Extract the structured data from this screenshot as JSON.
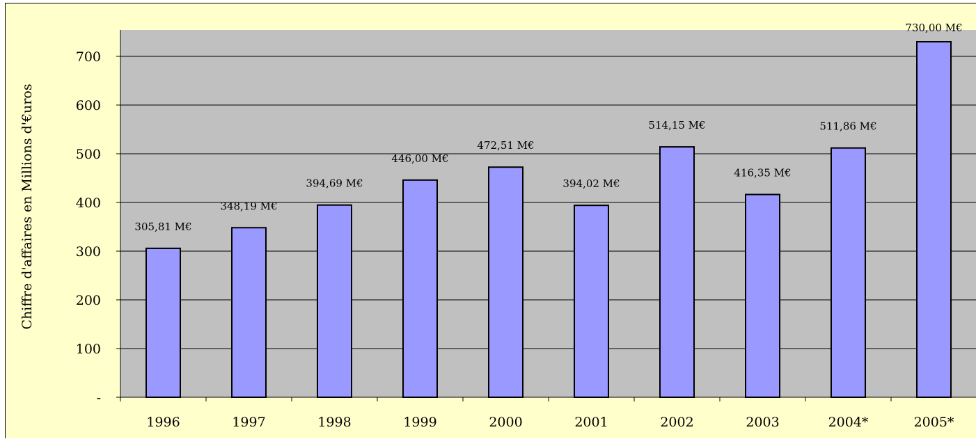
{
  "chart_data": {
    "type": "bar",
    "categories": [
      "1996",
      "1997",
      "1998",
      "1999",
      "2000",
      "2001",
      "2002",
      "2003",
      "2004*",
      "2005*"
    ],
    "values": [
      305.81,
      348.19,
      394.69,
      446.0,
      472.51,
      394.02,
      514.15,
      416.35,
      511.86,
      730.0
    ],
    "data_labels": [
      "305,81 M€",
      "348,19 M€",
      "394,69 M€",
      "446,00 M€",
      "472,51 M€",
      "394,02 M€",
      "514,15 M€",
      "416,35 M€",
      "511,86 M€",
      "730,00 M€"
    ],
    "title": "",
    "xlabel": "",
    "ylabel": "Chiffre d'affaires en Millions d'€uros",
    "ylim": [
      0,
      700
    ],
    "yticks": [
      0,
      100,
      200,
      300,
      400,
      500,
      600,
      700
    ],
    "ytick_labels": [
      "-",
      "100",
      "200",
      "300",
      "400",
      "500",
      "600",
      "700"
    ],
    "grid": true,
    "legend": "none",
    "colors": {
      "bar_fill": "#9999ff",
      "bar_stroke": "#000000",
      "plot_background": "#c0c0c0",
      "chart_background": "#ffffcc",
      "gridline": "#000000"
    }
  }
}
